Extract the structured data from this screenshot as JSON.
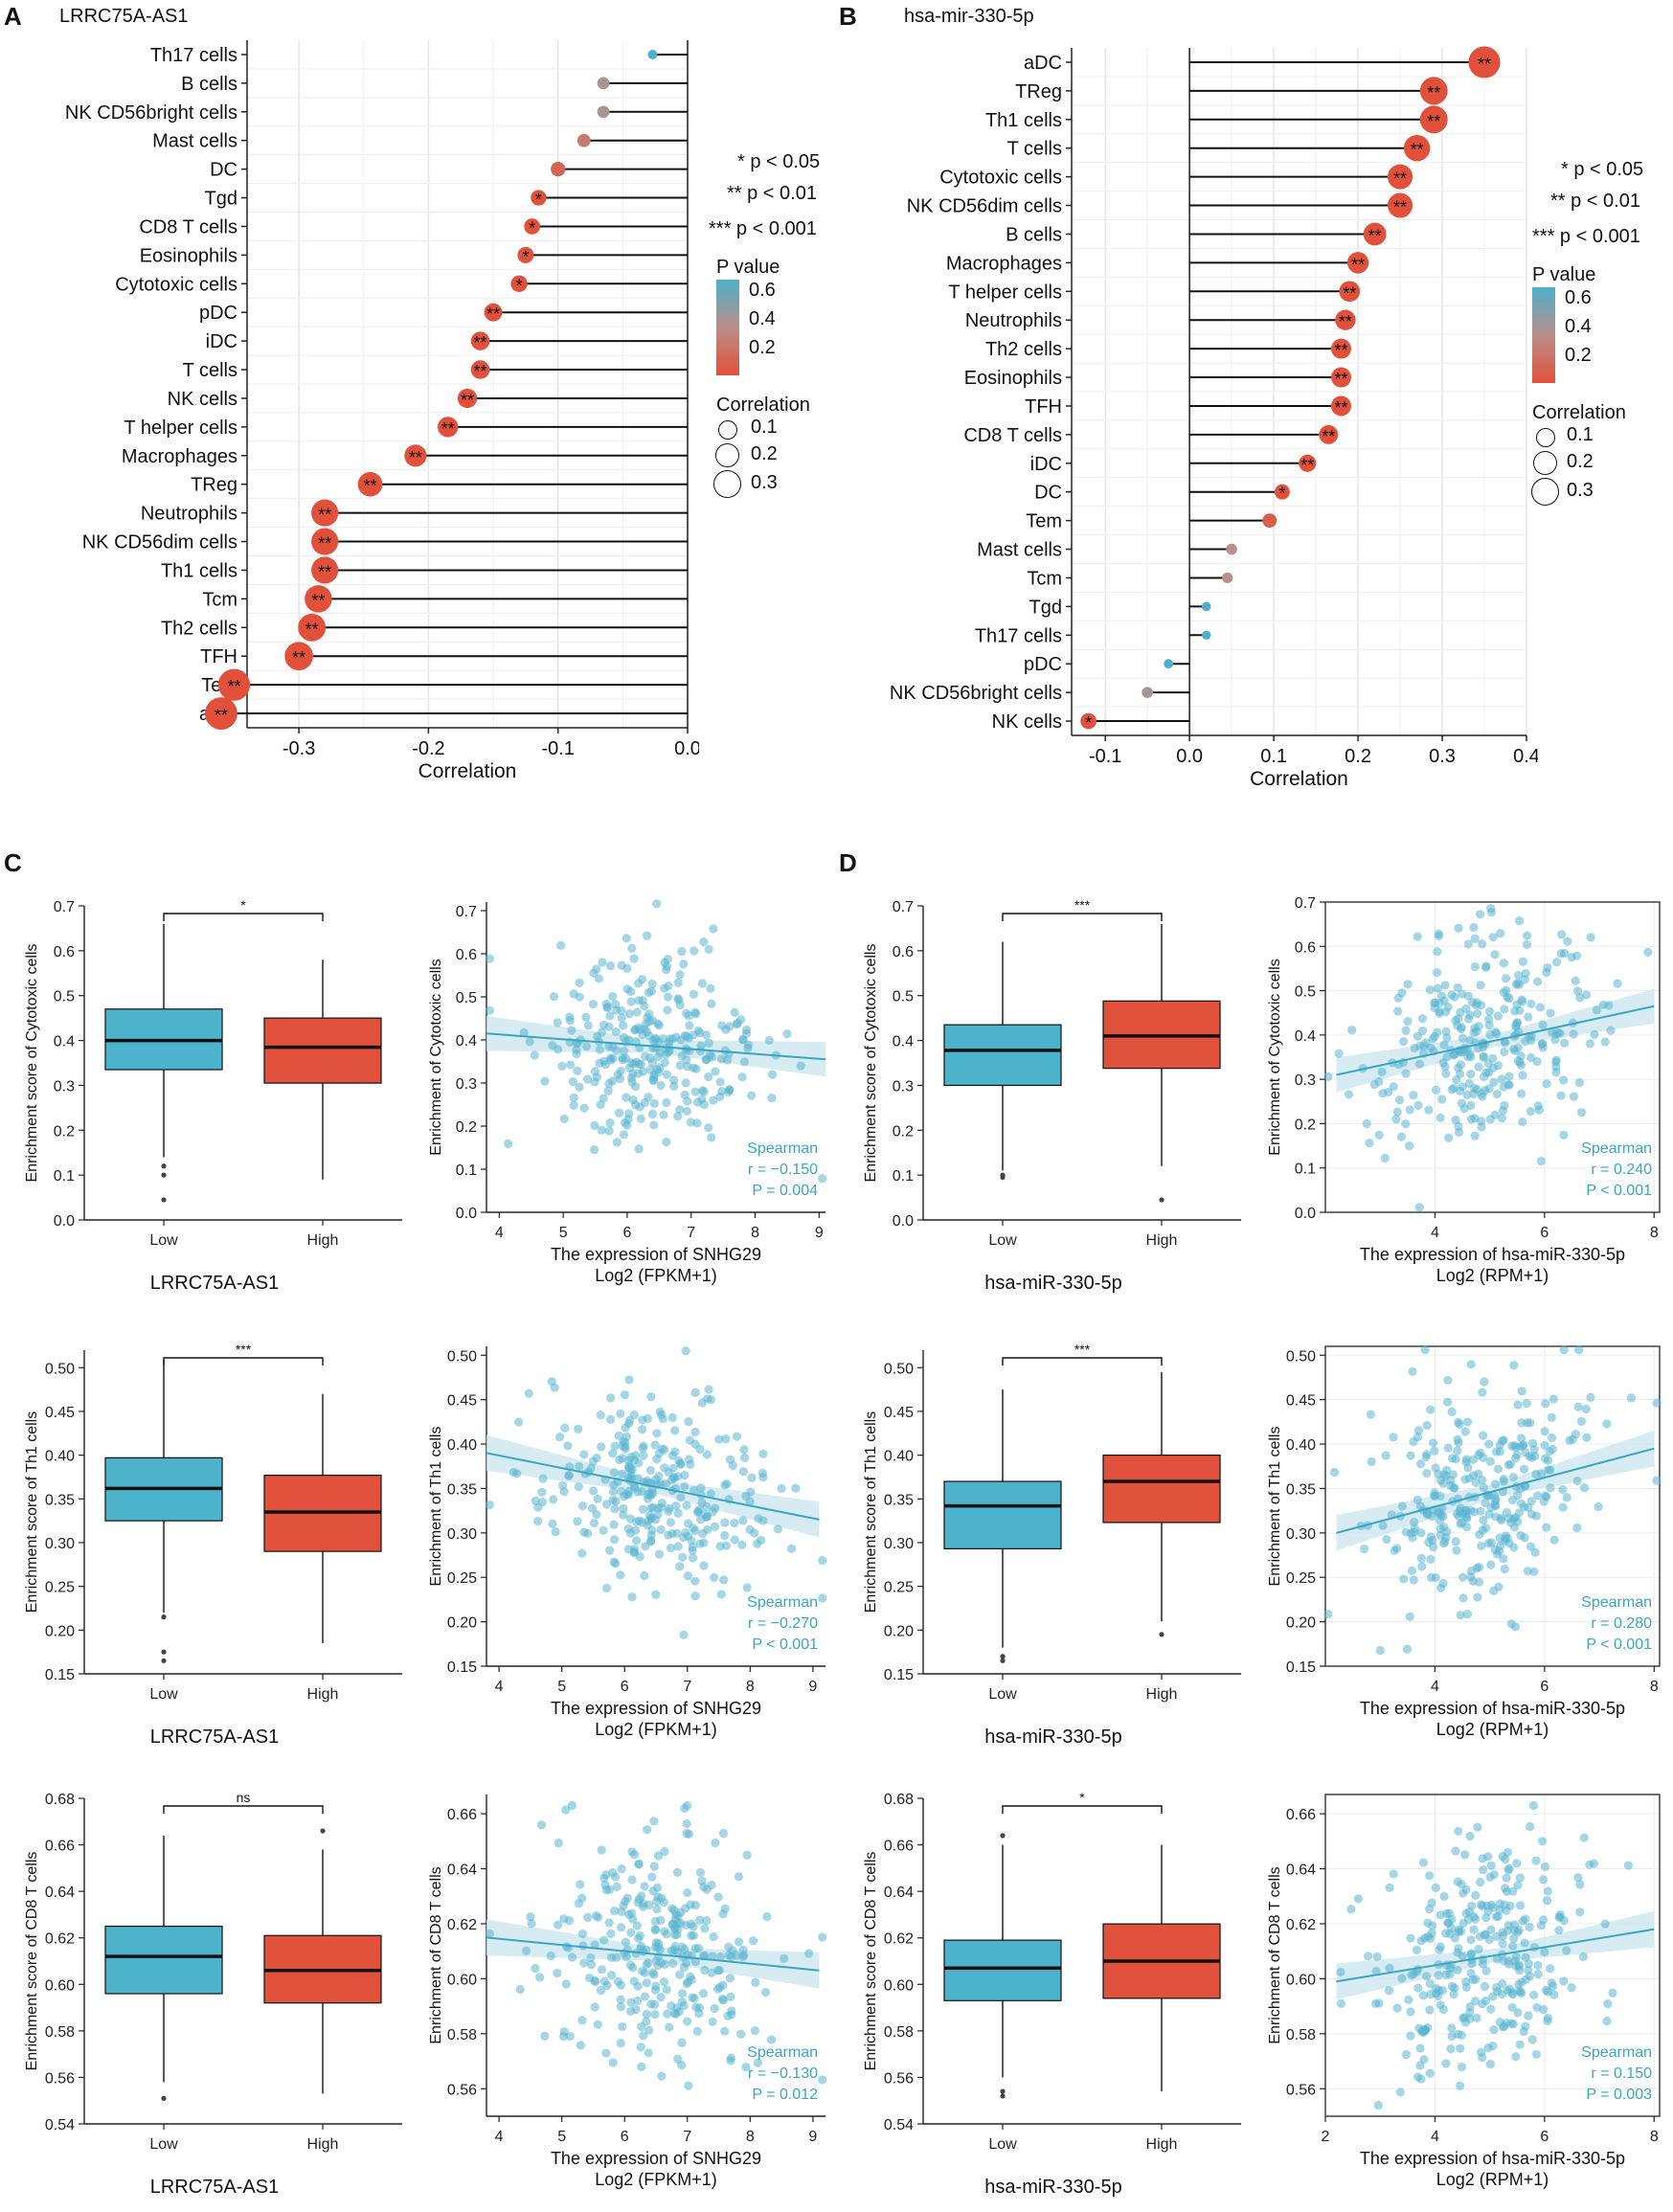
{
  "labels": {
    "a": "A",
    "b": "B",
    "c": "C",
    "d": "D"
  },
  "gene_titles": {
    "a": "LRRC75A-AS1",
    "b": "hsa-mir-330-5p"
  },
  "legend": {
    "sig1": "* p < 0.05",
    "sig2": "** p < 0.01",
    "sig3": "*** p < 0.001",
    "pvalue_title": "P value",
    "pvalue_ticks": [
      "0.6",
      "0.4",
      "0.2"
    ],
    "corr_title": "Correlation",
    "corr_ticks": [
      "0.1",
      "0.2",
      "0.3"
    ],
    "colors": {
      "high_p": "#4cb0c8",
      "mid_p": "#b98f8a",
      "low_p": "#e0503a"
    }
  },
  "box_colors": {
    "low": "#4db3cc",
    "high": "#e0523b",
    "scatter": "#5ab4cf"
  },
  "chart_data": [
    {
      "id": "A",
      "type": "lollipop",
      "xlabel": "Correlation",
      "xlim": [
        -0.34,
        0.0
      ],
      "xticks": [
        -0.3,
        -0.2,
        -0.1,
        0.0
      ],
      "xticklabels": [
        "-0.3",
        "-0.2",
        "-0.1",
        "0.0"
      ],
      "categories": [
        "Th17 cells",
        "B cells",
        "NK CD56bright cells",
        "Mast cells",
        "DC",
        "Tgd",
        "CD8 T cells",
        "Eosinophils",
        "Cytotoxic cells",
        "pDC",
        "iDC",
        "T cells",
        "NK cells",
        "T helper cells",
        "Macrophages",
        "TReg",
        "Neutrophils",
        "NK CD56dim cells",
        "Th1 cells",
        "Tcm",
        "Th2 cells",
        "TFH",
        "Tem",
        "aDC"
      ],
      "values": [
        -0.027,
        -0.065,
        -0.065,
        -0.08,
        -0.1,
        -0.115,
        -0.12,
        -0.125,
        -0.13,
        -0.15,
        -0.16,
        -0.16,
        -0.17,
        -0.185,
        -0.21,
        -0.245,
        -0.28,
        -0.28,
        -0.28,
        -0.285,
        -0.29,
        -0.3,
        -0.35,
        -0.36
      ],
      "pvalues": [
        0.6,
        0.35,
        0.35,
        0.2,
        0.1,
        0.04,
        0.04,
        0.04,
        0.04,
        0.008,
        0.008,
        0.008,
        0.008,
        0.008,
        0.008,
        0.008,
        0.008,
        0.008,
        0.008,
        0.008,
        0.008,
        0.008,
        0.008,
        0.008
      ],
      "sig": [
        "",
        "",
        "",
        "",
        "",
        "*",
        "*",
        "*",
        "*",
        "**",
        "**",
        "**",
        "**",
        "**",
        "**",
        "**",
        "**",
        "**",
        "**",
        "**",
        "**",
        "**",
        "**",
        "**"
      ]
    },
    {
      "id": "B",
      "type": "lollipop",
      "xlabel": "Correlation",
      "xlim": [
        -0.14,
        0.4
      ],
      "xticks": [
        -0.1,
        0.0,
        0.1,
        0.2,
        0.3,
        0.4
      ],
      "xticklabels": [
        "-0.1",
        "0.0",
        "0.1",
        "0.2",
        "0.3",
        "0.4"
      ],
      "categories": [
        "aDC",
        "TReg",
        "Th1 cells",
        "T cells",
        "Cytotoxic cells",
        "NK CD56dim cells",
        "B cells",
        "Macrophages",
        "T helper cells",
        "Neutrophils",
        "Th2 cells",
        "Eosinophils",
        "TFH",
        "CD8 T cells",
        "iDC",
        "DC",
        "Tem",
        "Mast cells",
        "Tcm",
        "Tgd",
        "Th17 cells",
        "pDC",
        "NK CD56bright cells",
        "NK cells"
      ],
      "values": [
        0.35,
        0.29,
        0.29,
        0.27,
        0.25,
        0.25,
        0.22,
        0.2,
        0.19,
        0.185,
        0.18,
        0.18,
        0.18,
        0.165,
        0.14,
        0.11,
        0.095,
        0.05,
        0.045,
        0.02,
        0.02,
        -0.025,
        -0.05,
        -0.12
      ],
      "pvalues": [
        0.005,
        0.005,
        0.005,
        0.005,
        0.005,
        0.005,
        0.005,
        0.005,
        0.005,
        0.005,
        0.005,
        0.005,
        0.005,
        0.005,
        0.005,
        0.03,
        0.06,
        0.3,
        0.3,
        0.6,
        0.6,
        0.62,
        0.35,
        0.03
      ],
      "sig": [
        "**",
        "**",
        "**",
        "**",
        "**",
        "**",
        "**",
        "**",
        "**",
        "**",
        "**",
        "**",
        "**",
        "**",
        "**",
        "*",
        "",
        "",
        "",
        "",
        "",
        "",
        "",
        "*"
      ]
    },
    {
      "id": "C1-box",
      "type": "box",
      "ylabel": "Enrichment score of Cytotoxic cells",
      "xlabel": "LRRC75A-AS1",
      "categories": [
        "Low",
        "High"
      ],
      "ylim": [
        0.0,
        0.7
      ],
      "yticks": [
        "0.0",
        "0.1",
        "0.2",
        "0.3",
        "0.4",
        "0.5",
        "0.6",
        "0.7"
      ],
      "sig": "*",
      "boxes": [
        {
          "q1": 0.335,
          "median": 0.4,
          "q3": 0.47,
          "wlo": 0.14,
          "whi": 0.66,
          "outliers": [
            0.045,
            0.1,
            0.12
          ]
        },
        {
          "q1": 0.305,
          "median": 0.385,
          "q3": 0.45,
          "wlo": 0.09,
          "whi": 0.58,
          "outliers": []
        }
      ]
    },
    {
      "id": "C1-scatter",
      "type": "scatter",
      "ylabel": "Enrichment of Cytotoxic cells",
      "xlabel": "The expression of SNHG29",
      "xlabel2": "Log2 (FPKM+1)",
      "xlim": [
        3.8,
        9.1
      ],
      "ylim": [
        0.0,
        0.72
      ],
      "xticks": [
        "4",
        "5",
        "6",
        "7",
        "8",
        "9"
      ],
      "yticks": [
        "0.0",
        "0.1",
        "0.2",
        "0.3",
        "0.4",
        "0.5",
        "0.6",
        "0.7"
      ],
      "fit": {
        "x": [
          3.8,
          9.1
        ],
        "y": [
          0.415,
          0.355
        ]
      },
      "center": [
        6.4,
        0.38
      ],
      "spread": [
        0.9,
        0.11
      ],
      "n": 300,
      "seed": 11,
      "stats": [
        "Spearman",
        "r = −0.150",
        "P = 0.004"
      ]
    },
    {
      "id": "C2-box",
      "type": "box",
      "ylabel": "Enrichment score of Th1 cells",
      "xlabel": "LRRC75A-AS1",
      "categories": [
        "Low",
        "High"
      ],
      "ylim": [
        0.15,
        0.52
      ],
      "yticks": [
        "0.15",
        "0.20",
        "0.25",
        "0.30",
        "0.35",
        "0.40",
        "0.45",
        "0.50"
      ],
      "sig": "***",
      "boxes": [
        {
          "q1": 0.325,
          "median": 0.362,
          "q3": 0.397,
          "wlo": 0.22,
          "whi": 0.51,
          "outliers": [
            0.165,
            0.175,
            0.215
          ]
        },
        {
          "q1": 0.29,
          "median": 0.335,
          "q3": 0.377,
          "wlo": 0.185,
          "whi": 0.47,
          "outliers": []
        }
      ]
    },
    {
      "id": "C2-scatter",
      "type": "scatter",
      "ylabel": "Enrichment of Th1 cells",
      "xlabel": "The expression of SNHG29",
      "xlabel2": "Log2 (FPKM+1)",
      "xlim": [
        3.8,
        9.2
      ],
      "ylim": [
        0.15,
        0.51
      ],
      "xticks": [
        "4",
        "5",
        "6",
        "7",
        "8",
        "9"
      ],
      "yticks": [
        "0.15",
        "0.20",
        "0.25",
        "0.30",
        "0.35",
        "0.40",
        "0.45",
        "0.50"
      ],
      "fit": {
        "x": [
          3.8,
          9.1
        ],
        "y": [
          0.39,
          0.315
        ]
      },
      "center": [
        6.5,
        0.345
      ],
      "spread": [
        0.9,
        0.055
      ],
      "n": 300,
      "seed": 23,
      "stats": [
        "Spearman",
        "r = −0.270",
        "P < 0.001"
      ]
    },
    {
      "id": "C3-box",
      "type": "box",
      "ylabel": "Enrichment score of CD8 T cells",
      "xlabel": "LRRC75A-AS1",
      "categories": [
        "Low",
        "High"
      ],
      "ylim": [
        0.54,
        0.68
      ],
      "yticks": [
        "0.54",
        "0.56",
        "0.58",
        "0.60",
        "0.62",
        "0.64",
        "0.66",
        "0.68"
      ],
      "sig": "ns",
      "boxes": [
        {
          "q1": 0.596,
          "median": 0.612,
          "q3": 0.625,
          "wlo": 0.558,
          "whi": 0.664,
          "outliers": [
            0.551
          ]
        },
        {
          "q1": 0.592,
          "median": 0.606,
          "q3": 0.621,
          "wlo": 0.553,
          "whi": 0.658,
          "outliers": [
            0.666
          ]
        }
      ]
    },
    {
      "id": "C3-scatter",
      "type": "scatter",
      "ylabel": "Enrichment of CD8 T cells",
      "xlabel": "The expression of SNHG29",
      "xlabel2": "Log2 (FPKM+1)",
      "xlim": [
        3.8,
        9.2
      ],
      "ylim": [
        0.55,
        0.667
      ],
      "xticks": [
        "4",
        "5",
        "6",
        "7",
        "8",
        "9"
      ],
      "yticks": [
        "0.56",
        "0.58",
        "0.60",
        "0.62",
        "0.64",
        "0.66"
      ],
      "fit": {
        "x": [
          3.8,
          9.1
        ],
        "y": [
          0.615,
          0.603
        ]
      },
      "center": [
        6.5,
        0.607
      ],
      "spread": [
        0.9,
        0.02
      ],
      "n": 300,
      "seed": 37,
      "stats": [
        "Spearman",
        "r = −0.130",
        "P = 0.012"
      ]
    },
    {
      "id": "D1-box",
      "type": "box",
      "ylabel": "Enrichment score of Cytotoxic cells",
      "xlabel": "hsa-miR-330-5p",
      "categories": [
        "Low",
        "High"
      ],
      "ylim": [
        0.0,
        0.7
      ],
      "yticks": [
        "0.0",
        "0.1",
        "0.2",
        "0.3",
        "0.4",
        "0.5",
        "0.6",
        "0.7"
      ],
      "sig": "***",
      "boxes": [
        {
          "q1": 0.3,
          "median": 0.378,
          "q3": 0.435,
          "wlo": 0.11,
          "whi": 0.62,
          "outliers": [
            0.095,
            0.1
          ]
        },
        {
          "q1": 0.338,
          "median": 0.41,
          "q3": 0.488,
          "wlo": 0.12,
          "whi": 0.66,
          "outliers": [
            0.045
          ]
        }
      ]
    },
    {
      "id": "D1-scatter",
      "type": "scatter",
      "ylabel": "Enrichment of Cytotoxic cells",
      "xlabel": "The expression of hsa-miR-330-5p",
      "xlabel2": "Log2 (RPM+1)",
      "xlim": [
        2.0,
        8.1
      ],
      "ylim": [
        0.0,
        0.7
      ],
      "xticks": [
        "4",
        "6",
        "8"
      ],
      "yticks": [
        "0.0",
        "0.1",
        "0.2",
        "0.3",
        "0.4",
        "0.5",
        "0.6",
        "0.7"
      ],
      "fit": {
        "x": [
          2.2,
          8.0
        ],
        "y": [
          0.31,
          0.465
        ]
      },
      "center": [
        4.9,
        0.39
      ],
      "spread": [
        1.0,
        0.11
      ],
      "n": 300,
      "seed": 41,
      "stats": [
        "Spearman",
        "r = 0.240",
        "P < 0.001"
      ]
    },
    {
      "id": "D2-box",
      "type": "box",
      "ylabel": "Enrichment score of Th1 cells",
      "xlabel": "hsa-miR-330-5p",
      "categories": [
        "Low",
        "High"
      ],
      "ylim": [
        0.15,
        0.52
      ],
      "yticks": [
        "0.15",
        "0.20",
        "0.25",
        "0.30",
        "0.35",
        "0.40",
        "0.45",
        "0.50"
      ],
      "sig": "***",
      "boxes": [
        {
          "q1": 0.293,
          "median": 0.342,
          "q3": 0.37,
          "wlo": 0.18,
          "whi": 0.475,
          "outliers": [
            0.165,
            0.17
          ]
        },
        {
          "q1": 0.323,
          "median": 0.37,
          "q3": 0.4,
          "wlo": 0.21,
          "whi": 0.495,
          "outliers": [
            0.195
          ]
        }
      ]
    },
    {
      "id": "D2-scatter",
      "type": "scatter",
      "ylabel": "Enrichment of Th1 cells",
      "xlabel": "The expression of hsa-miR-330-5p",
      "xlabel2": "Log2   (RPM+1)",
      "xlim": [
        2.0,
        8.1
      ],
      "ylim": [
        0.15,
        0.51
      ],
      "xticks": [
        "4",
        "6",
        "8"
      ],
      "yticks": [
        "0.15",
        "0.20",
        "0.25",
        "0.30",
        "0.35",
        "0.40",
        "0.45",
        "0.50"
      ],
      "fit": {
        "x": [
          2.2,
          8.0
        ],
        "y": [
          0.3,
          0.395
        ]
      },
      "center": [
        4.9,
        0.35
      ],
      "spread": [
        1.0,
        0.055
      ],
      "n": 300,
      "seed": 53,
      "stats": [
        "Spearman",
        "r = 0.280",
        "P < 0.001"
      ]
    },
    {
      "id": "D3-box",
      "type": "box",
      "ylabel": "Enrichment score of CD8 T cells",
      "xlabel": "hsa-miR-330-5p",
      "categories": [
        "Low",
        "High"
      ],
      "ylim": [
        0.54,
        0.68
      ],
      "yticks": [
        "0.54",
        "0.56",
        "0.58",
        "0.60",
        "0.62",
        "0.64",
        "0.66",
        "0.68"
      ],
      "sig": "*",
      "boxes": [
        {
          "q1": 0.593,
          "median": 0.607,
          "q3": 0.619,
          "wlo": 0.56,
          "whi": 0.66,
          "outliers": [
            0.552,
            0.554,
            0.664
          ]
        },
        {
          "q1": 0.594,
          "median": 0.61,
          "q3": 0.626,
          "wlo": 0.554,
          "whi": 0.66,
          "outliers": []
        }
      ]
    },
    {
      "id": "D3-scatter",
      "type": "scatter",
      "ylabel": "Enrichment of CD8 T cells",
      "xlabel": "The expression of hsa-miR-330-5p",
      "xlabel2": "Log2 (RPM+1)",
      "xlim": [
        2.0,
        8.1
      ],
      "ylim": [
        0.55,
        0.667
      ],
      "xticks": [
        "2",
        "4",
        "6",
        "8"
      ],
      "yticks": [
        "0.56",
        "0.58",
        "0.60",
        "0.62",
        "0.64",
        "0.66"
      ],
      "fit": {
        "x": [
          2.2,
          8.0
        ],
        "y": [
          0.599,
          0.618
        ]
      },
      "center": [
        4.9,
        0.608
      ],
      "spread": [
        1.0,
        0.02
      ],
      "n": 300,
      "seed": 67,
      "stats": [
        "Spearman",
        "r = 0.150",
        "P = 0.003"
      ]
    }
  ]
}
